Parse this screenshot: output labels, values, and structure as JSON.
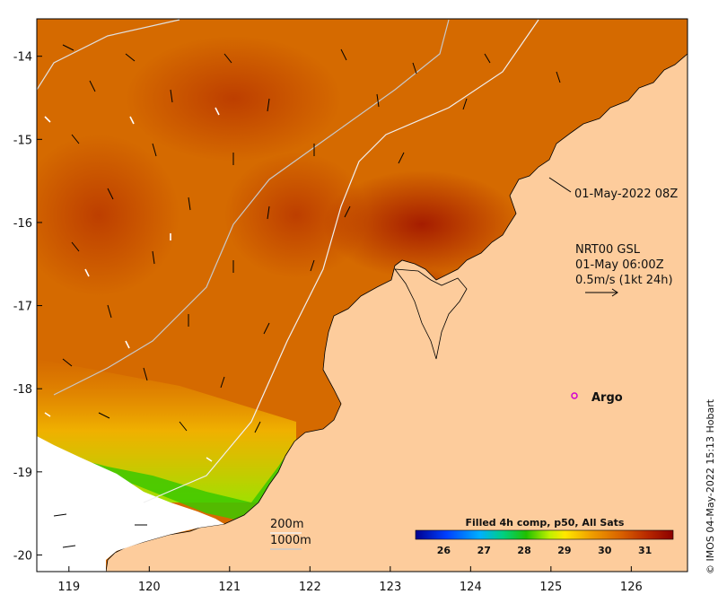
{
  "map": {
    "x_ticks": [
      "119",
      "120",
      "121",
      "122",
      "123",
      "124",
      "125",
      "126"
    ],
    "y_ticks": [
      "-14",
      "-15",
      "-16",
      "-17",
      "-18",
      "-19",
      "-20"
    ],
    "x_range": [
      118.6,
      126.7
    ],
    "y_range": [
      -20.2,
      -13.55
    ]
  },
  "annotations": {
    "timestamp_label": "01-May-2022 08Z",
    "current_model": "NRT00 GSL",
    "current_time": "01-May 06:00Z",
    "scale_vector": "0.5m/s (1kt 24h)",
    "argo_label": "Argo",
    "isobath_200": "200m",
    "isobath_1000": "1000m"
  },
  "colorbar": {
    "title": "Filled 4h comp, p50, All Sats",
    "ticks": [
      "26",
      "27",
      "28",
      "29",
      "30",
      "31"
    ],
    "range": [
      25.3,
      31.7
    ]
  },
  "credit": "© IMOS 04-May-2022 15:13 Hobart",
  "colors": {
    "land": "#fdcc9c",
    "no_data": "#ffffff",
    "sst_warm": "#d26000",
    "sst_hot": "#9a1000"
  },
  "argo_floats": [
    {
      "lon": 125.3,
      "lat": -18.0
    }
  ]
}
